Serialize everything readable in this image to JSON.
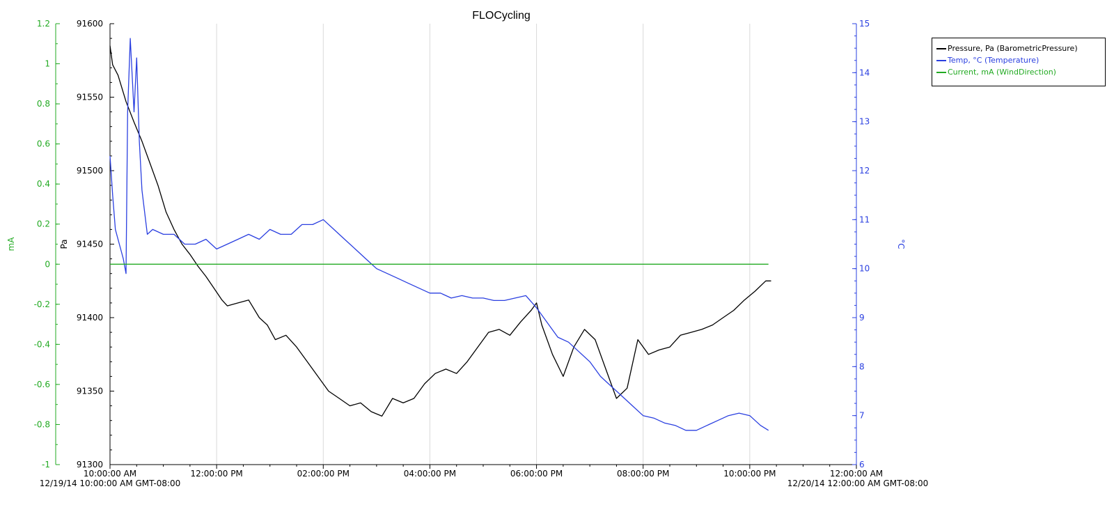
{
  "chart_data": {
    "type": "line",
    "title": "FLOCycling",
    "x_label_start": "12/19/14 10:00:00 AM GMT-08:00",
    "x_label_end": "12/20/14 12:00:00 AM GMT-08:00",
    "x_range_hours": [
      10,
      24
    ],
    "x_ticks": [
      {
        "h": 10,
        "label": "10:00:00 AM"
      },
      {
        "h": 12,
        "label": "12:00:00 PM"
      },
      {
        "h": 14,
        "label": "02:00:00 PM"
      },
      {
        "h": 16,
        "label": "04:00:00 PM"
      },
      {
        "h": 18,
        "label": "06:00:00 PM"
      },
      {
        "h": 20,
        "label": "08:00:00 PM"
      },
      {
        "h": 22,
        "label": "10:00:00 PM"
      },
      {
        "h": 24,
        "label": "12:00:00 AM"
      }
    ],
    "vertical_grid": true,
    "axes": {
      "mA": {
        "label": "mA",
        "color": "#22aa22",
        "range": [
          -1,
          1.2
        ],
        "ticks": [
          "-1",
          "-0.8",
          "-0.6",
          "-0.4",
          "-0.2",
          "0",
          "0.2",
          "0.4",
          "0.6",
          "0.8",
          "1",
          "1.2"
        ]
      },
      "Pa": {
        "label": "Pa",
        "color": "#000000",
        "range": [
          91300,
          91600
        ],
        "ticks": [
          "91300",
          "91350",
          "91400",
          "91450",
          "91500",
          "91550",
          "91600"
        ]
      },
      "C": {
        "label": "°C",
        "color": "#2a3fe0",
        "range": [
          6,
          15
        ],
        "ticks": [
          "6",
          "7",
          "8",
          "9",
          "10",
          "11",
          "12",
          "13",
          "14",
          "15"
        ]
      }
    },
    "legend_position": "top-right",
    "series": [
      {
        "name": "Pressure, Pa (BarometricPressure)",
        "axis": "Pa",
        "color": "#000000",
        "x": [
          10.0,
          10.05,
          10.15,
          10.3,
          10.45,
          10.6,
          10.75,
          10.9,
          11.05,
          11.2,
          11.35,
          11.5,
          11.65,
          11.8,
          11.95,
          12.1,
          12.2,
          12.4,
          12.6,
          12.8,
          12.95,
          13.1,
          13.3,
          13.5,
          13.7,
          13.9,
          14.1,
          14.3,
          14.5,
          14.7,
          14.9,
          15.1,
          15.3,
          15.5,
          15.7,
          15.9,
          16.1,
          16.3,
          16.5,
          16.7,
          16.9,
          17.1,
          17.3,
          17.5,
          17.7,
          17.9,
          18.0,
          18.1,
          18.3,
          18.5,
          18.7,
          18.9,
          19.1,
          19.3,
          19.5,
          19.7,
          19.9,
          20.1,
          20.3,
          20.5,
          20.7,
          20.9,
          21.1,
          21.3,
          21.5,
          21.7,
          21.9,
          22.1,
          22.3,
          22.4
        ],
        "y": [
          91585,
          91572,
          91565,
          91547,
          91533,
          91520,
          91505,
          91490,
          91472,
          91460,
          91450,
          91443,
          91435,
          91428,
          91420,
          91412,
          91408,
          91410,
          91412,
          91400,
          91395,
          91385,
          91388,
          91380,
          91370,
          91360,
          91350,
          91345,
          91340,
          91342,
          91336,
          91333,
          91345,
          91342,
          91345,
          91355,
          91362,
          91365,
          91362,
          91370,
          91380,
          91390,
          91392,
          91388,
          91397,
          91405,
          91410,
          91395,
          91375,
          91360,
          91380,
          91392,
          91385,
          91365,
          91345,
          91352,
          91385,
          91375,
          91378,
          91380,
          91388,
          91390,
          91392,
          91395,
          91400,
          91405,
          91412,
          91418,
          91425,
          91425
        ]
      },
      {
        "name": "Temp, °C (Temperature)",
        "axis": "C",
        "color": "#2a3fe0",
        "x": [
          10.0,
          10.05,
          10.1,
          10.2,
          10.25,
          10.3,
          10.33,
          10.38,
          10.45,
          10.5,
          10.55,
          10.6,
          10.7,
          10.8,
          11.0,
          11.2,
          11.4,
          11.6,
          11.8,
          12.0,
          12.2,
          12.4,
          12.6,
          12.8,
          13.0,
          13.2,
          13.4,
          13.6,
          13.8,
          14.0,
          14.2,
          14.4,
          14.6,
          14.8,
          15.0,
          15.2,
          15.4,
          15.6,
          15.8,
          16.0,
          16.2,
          16.4,
          16.6,
          16.8,
          17.0,
          17.2,
          17.4,
          17.6,
          17.8,
          18.0,
          18.2,
          18.4,
          18.6,
          18.8,
          19.0,
          19.2,
          19.4,
          19.6,
          19.8,
          20.0,
          20.2,
          20.4,
          20.6,
          20.8,
          21.0,
          21.2,
          21.4,
          21.6,
          21.8,
          22.0,
          22.2,
          22.35
        ],
        "y": [
          12.3,
          11.5,
          10.8,
          10.4,
          10.2,
          9.9,
          13.2,
          14.7,
          13.2,
          14.3,
          12.6,
          11.6,
          10.7,
          10.8,
          10.7,
          10.7,
          10.5,
          10.5,
          10.6,
          10.4,
          10.5,
          10.6,
          10.7,
          10.6,
          10.8,
          10.7,
          10.7,
          10.9,
          10.9,
          11.0,
          10.8,
          10.6,
          10.4,
          10.2,
          10.0,
          9.9,
          9.8,
          9.7,
          9.6,
          9.5,
          9.5,
          9.4,
          9.45,
          9.4,
          9.4,
          9.35,
          9.35,
          9.4,
          9.45,
          9.2,
          8.9,
          8.6,
          8.5,
          8.3,
          8.1,
          7.8,
          7.6,
          7.4,
          7.2,
          7.0,
          6.95,
          6.85,
          6.8,
          6.7,
          6.7,
          6.8,
          6.9,
          7.0,
          7.05,
          7.0,
          6.8,
          6.7
        ]
      },
      {
        "name": "Current, mA (WindDirection)",
        "axis": "mA",
        "color": "#22aa22",
        "x": [
          10.0,
          22.35
        ],
        "y": [
          0,
          0
        ]
      }
    ]
  }
}
